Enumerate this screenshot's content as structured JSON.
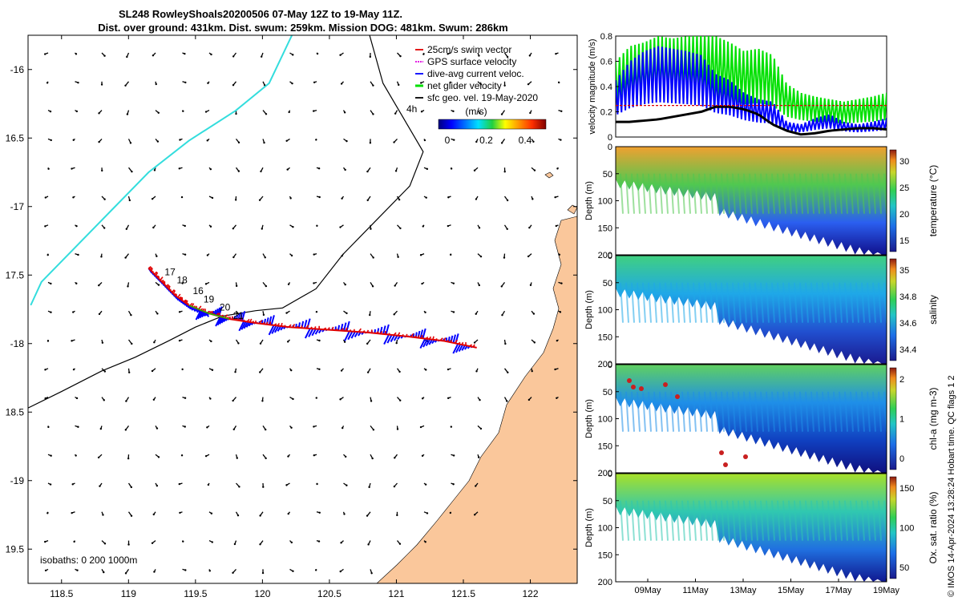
{
  "title": {
    "line1": "SL248 RowleyShoals20200506 07-May 12Z to 19-May 11Z.",
    "line2": "Dist. over ground: 431km. Dist. swum: 259km. Mission DOG: 481km. Swum: 286km"
  },
  "colors": {
    "land": "#fac79b",
    "swim": "#e00000",
    "gps": "#e000e0",
    "dive": "#0000ff",
    "net": "#00e000",
    "sfc": "#000000",
    "track_cyan": "#33dddd"
  },
  "chart_data": [
    {
      "type": "map",
      "name": "glider-track-map",
      "xlim": [
        118.25,
        122.35
      ],
      "ylim": [
        -19.75,
        -15.75
      ],
      "xticks": [
        118.5,
        119,
        119.5,
        120,
        120.5,
        121,
        121.5,
        122
      ],
      "xtick_labels": [
        "118.5",
        "119",
        "119.5",
        "120",
        "120.5",
        "121",
        "121.5",
        "122"
      ],
      "yticks": [
        -16,
        -16.5,
        -17,
        -17.5,
        -18,
        -18.5,
        -19,
        -19.5
      ],
      "ytick_labels": [
        "-16",
        "16.5",
        "-17",
        "17.5",
        "-18",
        "18.5",
        "-19",
        "19.5"
      ],
      "legend": [
        {
          "label": "25cm/s swim vector",
          "color": "#e00000"
        },
        {
          "label": "GPS surface velocity",
          "color": "#e000e0"
        },
        {
          "label": "dive-avg current veloc.",
          "color": "#0000ff"
        },
        {
          "label": "net glider velocity",
          "color": "#00e000"
        },
        {
          "label": "sfc geo. vel. 19-May-2020",
          "color": "#000000"
        }
      ],
      "colorbar": {
        "label": "(m/s)",
        "ticks": [
          "0",
          "0.2",
          "0.4"
        ],
        "prefix": "4h"
      },
      "isobaths_label": "isobaths: 0  200  1000m",
      "track": [
        [
          119.15,
          -17.45
        ],
        [
          119.25,
          -17.55
        ],
        [
          119.35,
          -17.65
        ],
        [
          119.45,
          -17.72
        ],
        [
          119.6,
          -17.78
        ],
        [
          119.75,
          -17.82
        ],
        [
          119.95,
          -17.85
        ],
        [
          120.2,
          -17.88
        ],
        [
          120.5,
          -17.9
        ],
        [
          120.8,
          -17.92
        ],
        [
          121.1,
          -17.95
        ],
        [
          121.35,
          -17.98
        ],
        [
          121.6,
          -18.03
        ]
      ],
      "day_labels": [
        {
          "text": "17",
          "lon": 119.27,
          "lat": -17.5
        },
        {
          "text": "18",
          "lon": 119.36,
          "lat": -17.56
        },
        {
          "text": "16",
          "lon": 119.48,
          "lat": -17.64
        },
        {
          "text": "19",
          "lon": 119.56,
          "lat": -17.7
        },
        {
          "text": "20",
          "lon": 119.68,
          "lat": -17.76
        },
        {
          "text": "21",
          "lon": 119.78,
          "lat": -17.82
        }
      ],
      "isobath_1000": [
        [
          118.25,
          -18.47
        ],
        [
          118.5,
          -18.35
        ],
        [
          118.8,
          -18.2
        ],
        [
          119.05,
          -18.1
        ],
        [
          119.3,
          -17.98
        ],
        [
          119.5,
          -17.88
        ],
        [
          119.7,
          -17.8
        ],
        [
          119.95,
          -17.76
        ],
        [
          120.15,
          -17.74
        ],
        [
          120.4,
          -17.6
        ],
        [
          120.6,
          -17.35
        ],
        [
          120.85,
          -17.1
        ],
        [
          121.1,
          -16.85
        ],
        [
          121.2,
          -16.6
        ],
        [
          121.05,
          -16.35
        ],
        [
          120.9,
          -16.1
        ],
        [
          120.8,
          -15.75
        ]
      ],
      "isobath_cyan": [
        [
          118.27,
          -17.72
        ],
        [
          118.35,
          -17.55
        ],
        [
          118.6,
          -17.3
        ],
        [
          118.9,
          -17.0
        ],
        [
          119.15,
          -16.75
        ],
        [
          119.45,
          -16.52
        ],
        [
          119.8,
          -16.3
        ],
        [
          120.05,
          -16.1
        ],
        [
          120.22,
          -15.75
        ]
      ]
    },
    {
      "type": "line",
      "name": "velocity-magnitude",
      "ylabel": "velocity magnitude (m/s)",
      "ylim": [
        0,
        0.8
      ],
      "yticks": [
        "0",
        "0.2",
        "0.4",
        "0.6",
        "0.8"
      ],
      "series": [
        {
          "name": "net glider velocity",
          "color": "#00e000",
          "values": [
            0.6,
            0.72,
            0.75,
            0.8,
            0.78,
            0.8,
            0.82,
            0.8,
            0.75,
            0.68,
            0.7,
            0.65,
            0.42,
            0.35,
            0.32,
            0.3,
            0.28,
            0.3,
            0.32,
            0.35
          ]
        },
        {
          "name": "dive-avg current veloc.",
          "color": "#0000ff",
          "values": [
            0.45,
            0.6,
            0.68,
            0.72,
            0.7,
            0.68,
            0.65,
            0.5,
            0.45,
            0.35,
            0.3,
            0.28,
            0.12,
            0.1,
            0.15,
            0.18,
            0.12,
            0.1,
            0.12,
            0.15
          ]
        },
        {
          "name": "sfc geo. vel.",
          "color": "#000000",
          "values": [
            0.12,
            0.12,
            0.13,
            0.14,
            0.16,
            0.18,
            0.2,
            0.24,
            0.24,
            0.22,
            0.18,
            0.1,
            0.05,
            0.02,
            0.03,
            0.05,
            0.06,
            0.07,
            0.07,
            0.06
          ]
        },
        {
          "name": "25cm/s swim",
          "color": "#e00000",
          "values": [
            0.25,
            0.25,
            0.25,
            0.25,
            0.25,
            0.25,
            0.25,
            0.25,
            0.25,
            0.25,
            0.25,
            0.25,
            0.25,
            0.25,
            0.25,
            0.25,
            0.25,
            0.25,
            0.25,
            0.25
          ]
        }
      ]
    },
    {
      "type": "heatmap",
      "name": "temperature-section",
      "variable": "temperature",
      "ylabel": "Depth (m)",
      "clabel": "temperature (°C)",
      "yticks": [
        "0",
        "50",
        "100",
        "150",
        "200"
      ],
      "cticks": [
        "30",
        "25",
        "20",
        "15"
      ],
      "crange": [
        15,
        31
      ]
    },
    {
      "type": "heatmap",
      "name": "salinity-section",
      "variable": "salinity",
      "ylabel": "Depth (m)",
      "clabel": "salinity",
      "yticks": [
        "0",
        "50",
        "100",
        "150",
        "200"
      ],
      "cticks": [
        "35",
        "34.8",
        "34.6",
        "34.4"
      ],
      "crange": [
        34.3,
        35.2
      ]
    },
    {
      "type": "heatmap",
      "name": "chla-section",
      "variable": "chl-a",
      "ylabel": "Depth (m)",
      "clabel": "chl-a (mg m-3)",
      "yticks": [
        "0",
        "50",
        "100",
        "150",
        "200"
      ],
      "cticks": [
        "2",
        "1",
        "0"
      ],
      "crange": [
        0,
        2
      ]
    },
    {
      "type": "heatmap",
      "name": "oxygen-section",
      "variable": "oxygen",
      "ylabel": "Depth (m)",
      "clabel": "Ox. sat. ratio (%)",
      "yticks": [
        "0",
        "50",
        "100",
        "150",
        "200"
      ],
      "cticks": [
        "150",
        "100",
        "50"
      ],
      "crange": [
        20,
        180
      ],
      "xtick_labels": [
        "09May",
        "11May",
        "13May",
        "15May",
        "17May",
        "19May"
      ]
    }
  ],
  "side_note": "© IMOS 14-Apr-2024 13:28:24 Hobart time. QC flags 1  2"
}
